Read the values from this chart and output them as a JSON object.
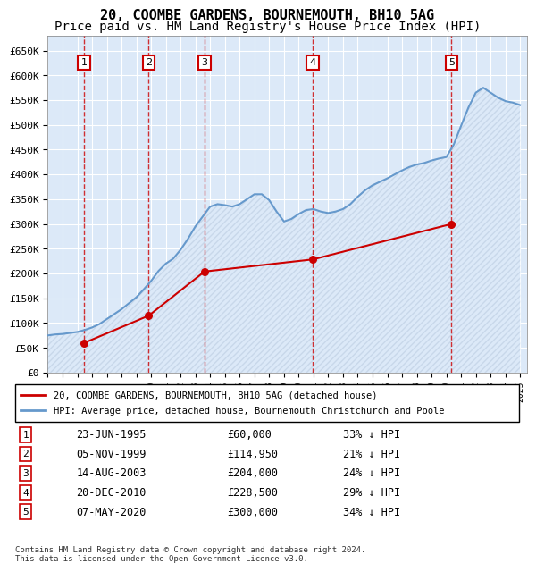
{
  "title": "20, COOMBE GARDENS, BOURNEMOUTH, BH10 5AG",
  "subtitle": "Price paid vs. HM Land Registry's House Price Index (HPI)",
  "ylabel": "",
  "ylim": [
    0,
    680000
  ],
  "yticks": [
    0,
    50000,
    100000,
    150000,
    200000,
    250000,
    300000,
    350000,
    400000,
    450000,
    500000,
    550000,
    600000,
    650000
  ],
  "ytick_labels": [
    "£0",
    "£50K",
    "£100K",
    "£150K",
    "£200K",
    "£250K",
    "£300K",
    "£350K",
    "£400K",
    "£450K",
    "£500K",
    "£550K",
    "£600K",
    "£650K"
  ],
  "bg_color": "#dce9f8",
  "grid_color": "#ffffff",
  "hatch_color": "#c8d8ea",
  "sale_color": "#cc0000",
  "hpi_color": "#6699cc",
  "transaction_color": "#cc0000",
  "sale_dates_x": [
    1995.47,
    1999.84,
    2003.62,
    2010.97,
    2020.35
  ],
  "sale_prices_y": [
    60000,
    114950,
    204000,
    228500,
    300000
  ],
  "sale_labels": [
    "1",
    "2",
    "3",
    "4",
    "5"
  ],
  "hpi_x": [
    1993.0,
    1993.5,
    1994.0,
    1994.5,
    1995.0,
    1995.5,
    1996.0,
    1996.5,
    1997.0,
    1997.5,
    1998.0,
    1998.5,
    1999.0,
    1999.5,
    2000.0,
    2000.5,
    2001.0,
    2001.5,
    2002.0,
    2002.5,
    2003.0,
    2003.5,
    2004.0,
    2004.5,
    2005.0,
    2005.5,
    2006.0,
    2006.5,
    2007.0,
    2007.5,
    2008.0,
    2008.5,
    2009.0,
    2009.5,
    2010.0,
    2010.5,
    2011.0,
    2011.5,
    2012.0,
    2012.5,
    2013.0,
    2013.5,
    2014.0,
    2014.5,
    2015.0,
    2015.5,
    2016.0,
    2016.5,
    2017.0,
    2017.5,
    2018.0,
    2018.5,
    2019.0,
    2019.5,
    2020.0,
    2020.5,
    2021.0,
    2021.5,
    2022.0,
    2022.5,
    2023.0,
    2023.5,
    2024.0,
    2024.5,
    2025.0
  ],
  "hpi_y": [
    75000,
    77000,
    78000,
    80000,
    82000,
    86000,
    91000,
    98000,
    108000,
    118000,
    128000,
    140000,
    152000,
    168000,
    185000,
    205000,
    220000,
    230000,
    248000,
    270000,
    295000,
    315000,
    335000,
    340000,
    338000,
    335000,
    340000,
    350000,
    360000,
    360000,
    348000,
    325000,
    305000,
    310000,
    320000,
    328000,
    330000,
    325000,
    322000,
    325000,
    330000,
    340000,
    355000,
    368000,
    378000,
    385000,
    392000,
    400000,
    408000,
    415000,
    420000,
    423000,
    428000,
    432000,
    435000,
    460000,
    498000,
    535000,
    565000,
    575000,
    565000,
    555000,
    548000,
    545000,
    540000
  ],
  "transaction_table": [
    {
      "num": "1",
      "date": "23-JUN-1995",
      "price": "£60,000",
      "hpi_pct": "33% ↓ HPI"
    },
    {
      "num": "2",
      "date": "05-NOV-1999",
      "price": "£114,950",
      "hpi_pct": "21% ↓ HPI"
    },
    {
      "num": "3",
      "date": "14-AUG-2003",
      "price": "£204,000",
      "hpi_pct": "24% ↓ HPI"
    },
    {
      "num": "4",
      "date": "20-DEC-2010",
      "price": "£228,500",
      "hpi_pct": "29% ↓ HPI"
    },
    {
      "num": "5",
      "date": "07-MAY-2020",
      "price": "£300,000",
      "hpi_pct": "34% ↓ HPI"
    }
  ],
  "legend_entries": [
    {
      "label": "20, COOMBE GARDENS, BOURNEMOUTH, BH10 5AG (detached house)",
      "color": "#cc0000"
    },
    {
      "label": "HPI: Average price, detached house, Bournemouth Christchurch and Poole",
      "color": "#6699cc"
    }
  ],
  "footer": "Contains HM Land Registry data © Crown copyright and database right 2024.\nThis data is licensed under the Open Government Licence v3.0.",
  "xtick_start": 1993,
  "xtick_end": 2025,
  "title_fontsize": 11,
  "subtitle_fontsize": 10,
  "tick_fontsize": 8,
  "monospace_font": "DejaVu Sans Mono"
}
